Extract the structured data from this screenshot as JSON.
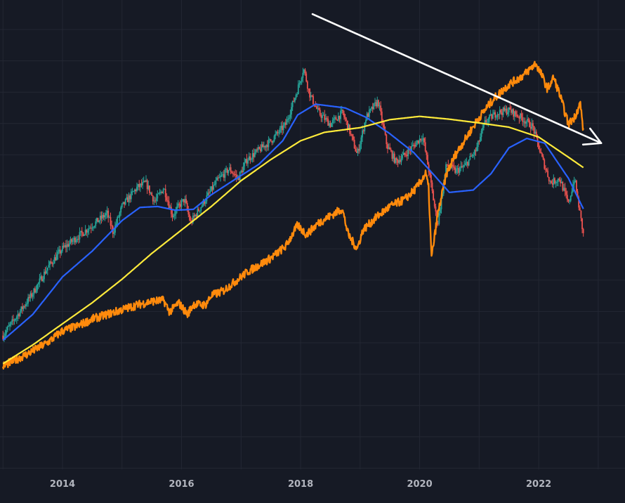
{
  "chart_data": {
    "type": "line",
    "title": "",
    "xlabel": "",
    "ylabel": "",
    "grid": true,
    "legend": "none",
    "x_ticks": [
      "2014",
      "2016",
      "2018",
      "2020",
      "2022"
    ],
    "x_range": [
      2012.95,
      2023.45
    ],
    "y_range": [
      0,
      100
    ],
    "colors": {
      "background": "#161a25",
      "grid": "#232733",
      "candle_up": "#26a69a",
      "candle_down": "#ef5350",
      "orange_series": "#ff8a0c",
      "blue_ma": "#2962ff",
      "yellow_ma": "#ffeb3b",
      "trendline": "#ffffff"
    },
    "series": [
      {
        "kind": "candlestick-trace",
        "values_xy": [
          [
            2013.0,
            28.5
          ],
          [
            2013.25,
            33
          ],
          [
            2013.5,
            37.5
          ],
          [
            2013.75,
            43
          ],
          [
            2014.0,
            47
          ],
          [
            2014.25,
            49.5
          ],
          [
            2014.5,
            52
          ],
          [
            2014.75,
            54.5
          ],
          [
            2014.85,
            50.5
          ],
          [
            2015.0,
            56
          ],
          [
            2015.25,
            60
          ],
          [
            2015.4,
            61
          ],
          [
            2015.55,
            57
          ],
          [
            2015.7,
            60
          ],
          [
            2015.85,
            54
          ],
          [
            2015.95,
            56
          ],
          [
            2016.05,
            57.5
          ],
          [
            2016.15,
            52.5
          ],
          [
            2016.35,
            56.5
          ],
          [
            2016.6,
            61.5
          ],
          [
            2016.8,
            64
          ],
          [
            2016.95,
            62
          ],
          [
            2017.1,
            66
          ],
          [
            2017.3,
            68
          ],
          [
            2017.5,
            70
          ],
          [
            2017.75,
            73.5
          ],
          [
            2017.95,
            81
          ],
          [
            2018.05,
            85.5
          ],
          [
            2018.15,
            80
          ],
          [
            2018.3,
            76
          ],
          [
            2018.5,
            73.5
          ],
          [
            2018.7,
            76
          ],
          [
            2018.8,
            73
          ],
          [
            2018.95,
            67
          ],
          [
            2019.1,
            75
          ],
          [
            2019.3,
            78.5
          ],
          [
            2019.45,
            69
          ],
          [
            2019.6,
            65.5
          ],
          [
            2019.75,
            67
          ],
          [
            2020.05,
            71
          ],
          [
            2020.15,
            64
          ],
          [
            2020.3,
            52
          ],
          [
            2020.45,
            65
          ],
          [
            2020.6,
            63.5
          ],
          [
            2020.75,
            64.5
          ],
          [
            2020.95,
            68
          ],
          [
            2021.1,
            74
          ],
          [
            2021.3,
            76
          ],
          [
            2021.5,
            76.5
          ],
          [
            2021.7,
            75
          ],
          [
            2021.9,
            73
          ],
          [
            2022.05,
            66.5
          ],
          [
            2022.2,
            61
          ],
          [
            2022.35,
            62
          ],
          [
            2022.5,
            56.5
          ],
          [
            2022.6,
            62
          ],
          [
            2022.7,
            54
          ],
          [
            2022.75,
            50
          ]
        ],
        "color": "#26a69a"
      },
      {
        "kind": "line",
        "values_xy": [
          [
            2013.0,
            22
          ],
          [
            2013.4,
            24.5
          ],
          [
            2013.75,
            27
          ],
          [
            2014.0,
            29.5
          ],
          [
            2014.25,
            30.5
          ],
          [
            2014.5,
            32
          ],
          [
            2014.75,
            33
          ],
          [
            2015.0,
            34
          ],
          [
            2015.25,
            35
          ],
          [
            2015.5,
            35.8
          ],
          [
            2015.7,
            36
          ],
          [
            2015.8,
            33.5
          ],
          [
            2015.95,
            35.5
          ],
          [
            2016.1,
            33
          ],
          [
            2016.2,
            35.2
          ],
          [
            2016.4,
            35
          ],
          [
            2016.5,
            37
          ],
          [
            2016.7,
            38
          ],
          [
            2016.9,
            40
          ],
          [
            2017.1,
            42
          ],
          [
            2017.3,
            43.5
          ],
          [
            2017.5,
            45
          ],
          [
            2017.75,
            47.5
          ],
          [
            2017.95,
            52
          ],
          [
            2018.1,
            50
          ],
          [
            2018.3,
            52.5
          ],
          [
            2018.5,
            54
          ],
          [
            2018.7,
            55.5
          ],
          [
            2018.8,
            50
          ],
          [
            2018.95,
            47
          ],
          [
            2019.05,
            51
          ],
          [
            2019.3,
            54
          ],
          [
            2019.5,
            56
          ],
          [
            2019.75,
            57.5
          ],
          [
            2019.95,
            60
          ],
          [
            2020.1,
            63
          ],
          [
            2020.15,
            60
          ],
          [
            2020.2,
            45
          ],
          [
            2020.3,
            54
          ],
          [
            2020.45,
            63
          ],
          [
            2020.6,
            67
          ],
          [
            2020.75,
            70
          ],
          [
            2021.0,
            75
          ],
          [
            2021.25,
            79
          ],
          [
            2021.5,
            82
          ],
          [
            2021.75,
            84
          ],
          [
            2021.95,
            86.5
          ],
          [
            2022.05,
            84
          ],
          [
            2022.15,
            81
          ],
          [
            2022.25,
            83.5
          ],
          [
            2022.35,
            80
          ],
          [
            2022.5,
            73.5
          ],
          [
            2022.6,
            75
          ],
          [
            2022.7,
            78
          ],
          [
            2022.75,
            72
          ]
        ],
        "color": "#ff8a0c"
      },
      {
        "kind": "line",
        "values_xy": [
          [
            2013.0,
            27.5
          ],
          [
            2013.5,
            33
          ],
          [
            2014.0,
            41
          ],
          [
            2014.5,
            46.5
          ],
          [
            2015.0,
            53
          ],
          [
            2015.3,
            55.8
          ],
          [
            2015.6,
            56
          ],
          [
            2015.9,
            55.2
          ],
          [
            2016.2,
            55.4
          ],
          [
            2016.5,
            58.5
          ],
          [
            2016.9,
            61.8
          ],
          [
            2017.3,
            65
          ],
          [
            2017.7,
            70
          ],
          [
            2017.95,
            75.5
          ],
          [
            2018.25,
            77.8
          ],
          [
            2018.75,
            77
          ],
          [
            2019.1,
            75
          ],
          [
            2019.5,
            71.5
          ],
          [
            2019.9,
            67.5
          ],
          [
            2020.15,
            64
          ],
          [
            2020.5,
            59
          ],
          [
            2020.9,
            59.5
          ],
          [
            2021.2,
            63
          ],
          [
            2021.5,
            68.5
          ],
          [
            2021.8,
            70.5
          ],
          [
            2022.1,
            69.5
          ],
          [
            2022.5,
            62
          ],
          [
            2022.75,
            55.5
          ]
        ],
        "color": "#2962ff"
      },
      {
        "kind": "line",
        "values_xy": [
          [
            2013.0,
            22.5
          ],
          [
            2013.5,
            26.5
          ],
          [
            2014.0,
            31
          ],
          [
            2014.5,
            35.5
          ],
          [
            2015.0,
            40.5
          ],
          [
            2015.5,
            46
          ],
          [
            2016.0,
            51
          ],
          [
            2016.5,
            56
          ],
          [
            2017.0,
            61.5
          ],
          [
            2017.5,
            66
          ],
          [
            2018.0,
            70
          ],
          [
            2018.4,
            71.8
          ],
          [
            2019.0,
            72.8
          ],
          [
            2019.5,
            74.5
          ],
          [
            2020.0,
            75.2
          ],
          [
            2020.5,
            74.6
          ],
          [
            2021.0,
            73.8
          ],
          [
            2021.5,
            72.9
          ],
          [
            2022.0,
            70.8
          ],
          [
            2022.5,
            66.5
          ],
          [
            2022.75,
            64.3
          ]
        ],
        "color": "#ffeb3b"
      }
    ],
    "annotations": [
      {
        "type": "arrow",
        "from": [
          2018.2,
          97
        ],
        "to": [
          2023.05,
          69.5
        ],
        "color": "#ffffff"
      }
    ]
  }
}
